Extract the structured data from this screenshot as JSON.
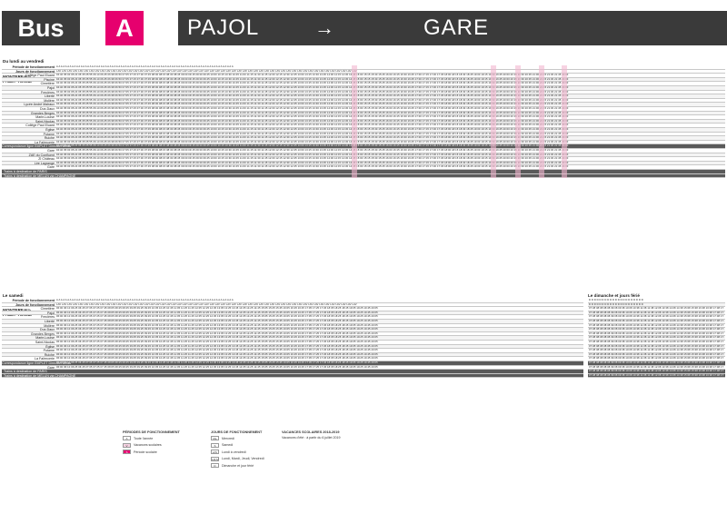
{
  "header": {
    "mode": "Bus",
    "line": "A",
    "from": "PAJOL",
    "arrow": "→",
    "to": "GARE"
  },
  "weekday": {
    "title": "Du lundi au vendredi",
    "period_label": "Période de fonctionnement",
    "days_label": "Jours de fonctionnement",
    "city": "MONTEREAU-\nFAULT-YONNE",
    "stops": [
      "Collège Paul Eluard",
      "Piscine",
      "Cimetière",
      "Pajol",
      "Frecières",
      "Liberté",
      "Molière",
      "Lycée André Malraux",
      "Dux-Daux",
      "Grandes Berges",
      "Marie-Louise",
      "Saint-Nicolas",
      "Collège Paul Eluard",
      "Église",
      "Potame",
      "Ruiche",
      "La Faïencerie",
      "Correspondance ligne EMPLET Direction Bréau",
      "Gare",
      "ZAE du Confluent",
      "ZI Château",
      "Lire Lagrange",
      "Gare"
    ],
    "sample_times": "04:40 05:00 05:23 05:35 05:55 06:10 06:25 06:38 06:50 07:05 07:15 07:30 07:45 08:00 08:15 08:30 08:45 09:00 09:15 09:30 09:45 10:00 10:15 10:30 10:45 11:00 11:15 11:30 11:45 12:00 12:15 12:30 12:45 13:00 13:15 13:30 13:45 14:00 14:15 14:30 14:45 15:00 15:15 15:30 15:45 16:00 16:15 16:30 16:45 17:00 17:15 17:30 17:45 18:00 18:15 18:30 18:45 19:00 19:15 19:30 19:45 20:00 20:15 20:30 20:45 21:00 21:15 21:30 21:45 22:00",
    "train_paris": "Trains à destination de PARIS",
    "train_melun": "Trains à destination de MELUN via CHAMPAGNE"
  },
  "saturday": {
    "title": "Le samedi",
    "period_label": "Période de fonctionnement",
    "days_label": "Jours de fonctionnement",
    "city": "MONTEREAU-\nFAULT-YONNE",
    "stops": [
      "Cimetière",
      "Pajol",
      "Frecières",
      "Liberté",
      "Molière",
      "Dux-Daux",
      "Grandes Berges",
      "Marie-Louise",
      "Saint-Nicolas",
      "Église",
      "Potame",
      "Ruiche",
      "La Faïencerie",
      "Correspondance ligne EMPLET Direction Bréau",
      "Gare"
    ],
    "sample_times": "06:00 06:10 06:25 06:45 07:05 07:25 07:45 08:05 08:25 08:45 09:05 09:25 09:45 10:05 10:25 10:45 11:05 11:25 11:45 12:05 12:25 12:45 13:05 13:25 13:45 14:05 14:25 14:45 15:05 15:25 15:45 16:05 16:25 16:45 17:05 17:25 17:45 18:05 18:25 18:45 19:05 19:25 19:45 20:05",
    "train_paris": "Trains à destination de PARIS",
    "train_melun": "Trains à destination de MELUN via CHAMPAGNE"
  },
  "sunday": {
    "title": "Le dimanche et jours férié",
    "sample_times": "07:38 08:08 08:38 09:08 09:38 10:08 10:38 11:08 11:38 12:08 13:38 14:08 14:38 15:08 15:38 16:08 16:38 17:08 17:38 18:08 18:38 19:08"
  },
  "legend": {
    "periods_title": "PÉRIODES DE FONCTIONNEMENT",
    "periods": [
      {
        "code": "A",
        "label": "Toute l'année"
      },
      {
        "code": "V",
        "label": "Vacances scolaires"
      },
      {
        "code": "S",
        "label": "Période scolaire"
      }
    ],
    "days_title": "JOURS DE FONCTIONNEMENT",
    "days": [
      {
        "code": "Me",
        "label": "Mercredi"
      },
      {
        "code": "S",
        "label": "Samedi"
      },
      {
        "code": "LAV",
        "label": "Lundi à vendredi"
      },
      {
        "code": "LMJV",
        "label": "Lundi, Mardi, Jeudi, Vendredi"
      },
      {
        "code": "D",
        "label": "Dimanche et jour férié"
      }
    ],
    "holidays_title": "VACANCES SCOLAIRES 2018-2019",
    "holidays_note": "Vacances d'été : à partir du 6 juillet 2019"
  },
  "colors": {
    "dark": "#3a3a3a",
    "accent": "#e6006e",
    "highlight": "#f2b6cf"
  }
}
